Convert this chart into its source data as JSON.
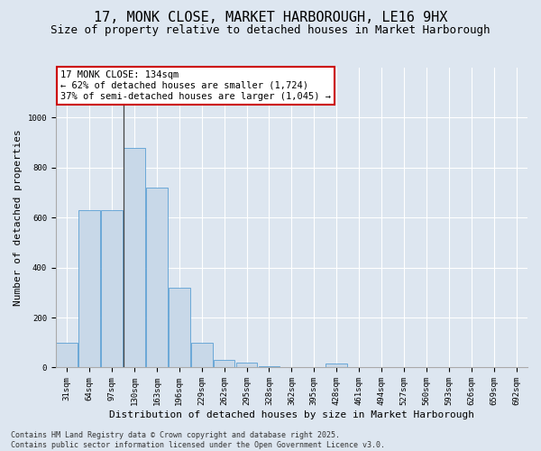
{
  "title": "17, MONK CLOSE, MARKET HARBOROUGH, LE16 9HX",
  "subtitle": "Size of property relative to detached houses in Market Harborough",
  "xlabel": "Distribution of detached houses by size in Market Harborough",
  "ylabel": "Number of detached properties",
  "categories": [
    "31sqm",
    "64sqm",
    "97sqm",
    "130sqm",
    "163sqm",
    "196sqm",
    "229sqm",
    "262sqm",
    "295sqm",
    "328sqm",
    "362sqm",
    "395sqm",
    "428sqm",
    "461sqm",
    "494sqm",
    "527sqm",
    "560sqm",
    "593sqm",
    "626sqm",
    "659sqm",
    "692sqm"
  ],
  "values": [
    100,
    630,
    630,
    880,
    720,
    320,
    100,
    30,
    20,
    5,
    0,
    0,
    15,
    0,
    0,
    0,
    0,
    0,
    0,
    0,
    0
  ],
  "bar_color": "#c8d8e8",
  "bar_edge_color": "#5a9fd4",
  "annotation_text": "17 MONK CLOSE: 134sqm\n← 62% of detached houses are smaller (1,724)\n37% of semi-detached houses are larger (1,045) →",
  "annotation_box_color": "#ffffff",
  "annotation_box_edge_color": "#cc0000",
  "vline_x_index": 3,
  "vline_color": "#444444",
  "ylim": [
    0,
    1200
  ],
  "yticks": [
    0,
    200,
    400,
    600,
    800,
    1000
  ],
  "background_color": "#dde6f0",
  "plot_bg_color": "#dde6f0",
  "footer": "Contains HM Land Registry data © Crown copyright and database right 2025.\nContains public sector information licensed under the Open Government Licence v3.0.",
  "title_fontsize": 11,
  "subtitle_fontsize": 9,
  "xlabel_fontsize": 8,
  "ylabel_fontsize": 8,
  "tick_fontsize": 6.5,
  "annotation_fontsize": 7.5,
  "footer_fontsize": 6
}
